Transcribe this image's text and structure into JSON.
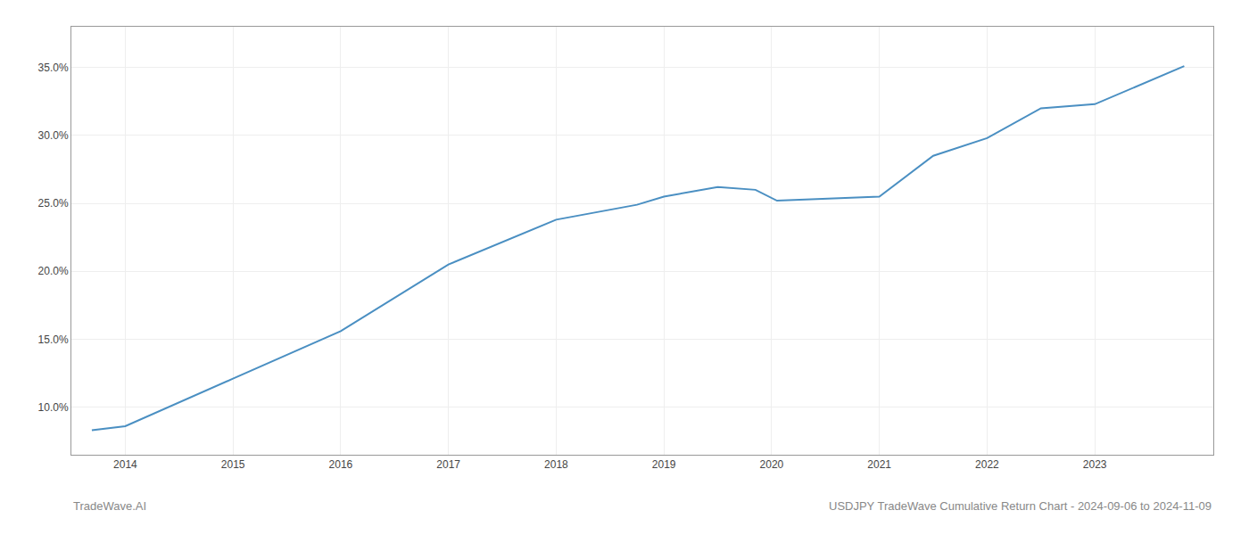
{
  "chart_data": {
    "type": "line",
    "x": [
      2013.69,
      2014.0,
      2015.0,
      2016.0,
      2017.0,
      2018.0,
      2018.75,
      2019.0,
      2019.5,
      2019.85,
      2020.05,
      2021.0,
      2021.5,
      2022.0,
      2022.5,
      2023.0,
      2023.83
    ],
    "values": [
      8.3,
      8.6,
      12.1,
      15.6,
      20.5,
      23.8,
      24.9,
      25.5,
      26.2,
      26.0,
      25.2,
      25.5,
      28.5,
      29.8,
      32.0,
      32.3,
      35.1
    ],
    "color": "#4a8fc2",
    "xlim": [
      2013.5,
      2024.1
    ],
    "ylim": [
      6.5,
      38.0
    ],
    "xticks": [
      2014,
      2015,
      2016,
      2017,
      2018,
      2019,
      2020,
      2021,
      2022,
      2023
    ],
    "yticks": [
      {
        "value": 10.0,
        "label": "10.0%"
      },
      {
        "value": 15.0,
        "label": "15.0%"
      },
      {
        "value": 20.0,
        "label": "20.0%"
      },
      {
        "value": 25.0,
        "label": "25.0%"
      },
      {
        "value": 30.0,
        "label": "30.0%"
      },
      {
        "value": 35.0,
        "label": "35.0%"
      }
    ],
    "grid": true,
    "annotations": [
      "TradeWave.AI",
      "USDJPY TradeWave Cumulative Return Chart - 2024-09-06 to 2024-11-09"
    ]
  }
}
